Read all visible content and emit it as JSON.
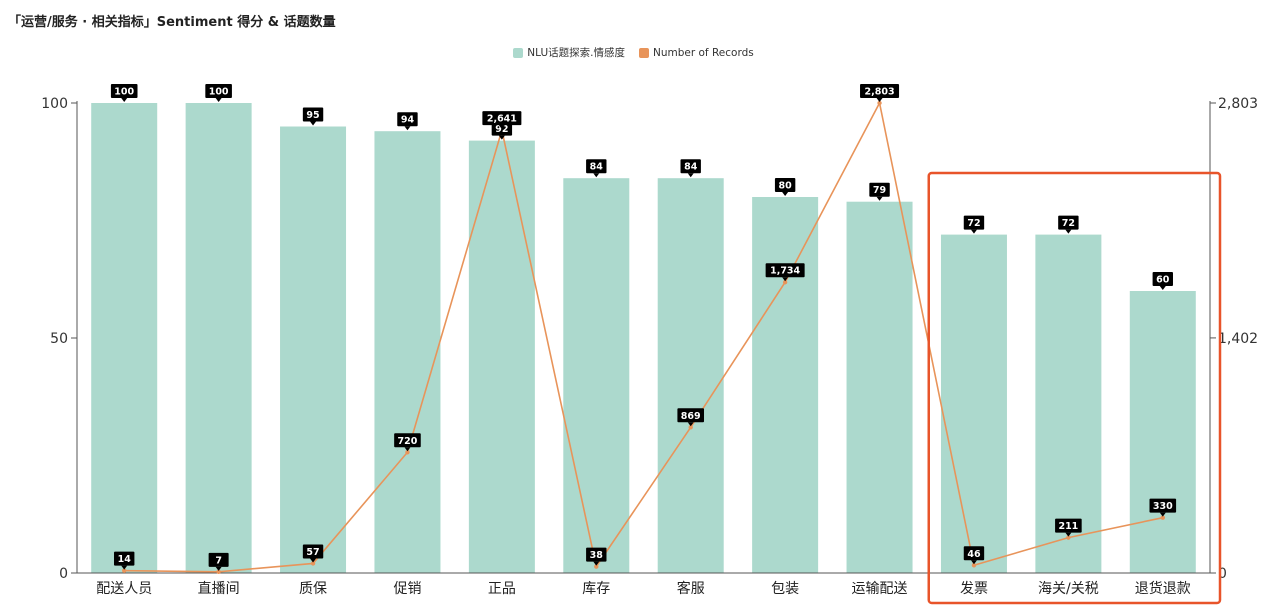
{
  "title": "「运营/服务 · 相关指标」Sentiment 得分 & 话题数量",
  "colors": {
    "bar": "#acd9cd",
    "line": "#e8945a",
    "label_bg": "#000000",
    "highlight": "#e8542a"
  },
  "chart_data": {
    "type": "bar",
    "categories": [
      "配送人员",
      "直播间",
      "质保",
      "促销",
      "正品",
      "库存",
      "客服",
      "包装",
      "运输配送",
      "发票",
      "海关/关税",
      "退货退款"
    ],
    "series": [
      {
        "name": "NLU话题探索.情感度",
        "type": "bar",
        "axis": "left",
        "values": [
          100,
          100,
          95,
          94,
          92,
          84,
          84,
          80,
          79,
          72,
          72,
          60
        ],
        "labels": [
          "100",
          "100",
          "95",
          "94",
          "92",
          "84",
          "84",
          "80",
          "79",
          "72",
          "72",
          "60"
        ]
      },
      {
        "name": "Number of Records",
        "type": "line",
        "axis": "right",
        "values": [
          14,
          7,
          57,
          720,
          2641,
          38,
          869,
          1734,
          2803,
          46,
          211,
          330
        ],
        "labels": [
          "14",
          "7",
          "57",
          "720",
          "2,641",
          "38",
          "869",
          "1,734",
          "2,803",
          "46",
          "211",
          "330"
        ]
      }
    ],
    "y_left": {
      "range": [
        0,
        100
      ],
      "ticks": [
        0,
        50,
        100
      ],
      "tick_labels": [
        "0",
        "50",
        "100"
      ]
    },
    "y_right": {
      "range": [
        0,
        2803
      ],
      "ticks": [
        0,
        1402,
        2803
      ],
      "tick_labels": [
        "0",
        "1,402",
        "2,803"
      ]
    },
    "grid": false,
    "legend_position": "top-center",
    "highlight_categories": [
      "发票",
      "海关/关税",
      "退货退款"
    ]
  }
}
